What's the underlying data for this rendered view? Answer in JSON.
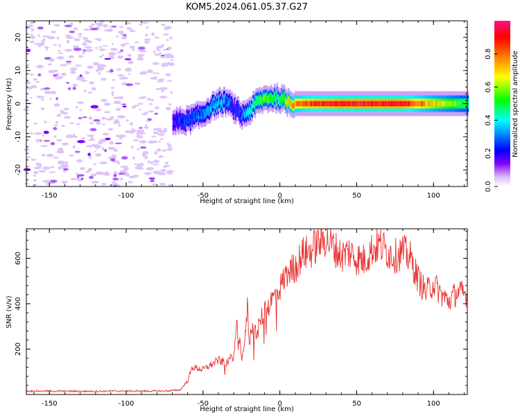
{
  "title": "KOM5.2024.061.05.37.G27",
  "chart_data": [
    {
      "type": "heatmap",
      "xlabel": "Height of straight line (km)",
      "ylabel": "Frequency (Hz)",
      "xlim": [
        -165,
        122
      ],
      "ylim": [
        -25,
        25
      ],
      "xticks": [
        -150,
        -100,
        -50,
        0,
        50,
        100
      ],
      "yticks": [
        20,
        10,
        0,
        -10,
        -20
      ],
      "colorbar": {
        "label": "Normalized spectral amplitude",
        "range": [
          0,
          1
        ],
        "ticks": [
          0.0,
          0.2,
          0.4,
          0.6,
          0.8
        ],
        "colormap": [
          "#ffffff",
          "#d8b8f8",
          "#8000ff",
          "#0000ff",
          "#00a0ff",
          "#00ffff",
          "#00ff00",
          "#ffff00",
          "#ff8000",
          "#ff0000",
          "#ff1080"
        ]
      },
      "noise_region": {
        "x": [
          -165,
          -70
        ],
        "freq": [
          -25,
          25
        ],
        "amplitude": 0.08
      },
      "signal_trace": {
        "x": [
          -70,
          -60,
          -50,
          -45,
          -40,
          -35,
          -30,
          -25,
          -20,
          -15,
          -10,
          -5,
          0,
          5,
          10,
          20,
          40,
          60,
          80,
          100,
          122
        ],
        "freq": [
          -5.5,
          -5.0,
          -3.0,
          -1.0,
          0.3,
          0.5,
          -1.5,
          -3.5,
          -2.0,
          0.5,
          1.5,
          1.8,
          1.5,
          0.5,
          0.0,
          0.0,
          0.0,
          0.0,
          0.0,
          0.0,
          0.0
        ],
        "amplitude": [
          0.15,
          0.25,
          0.3,
          0.35,
          0.35,
          0.3,
          0.2,
          0.25,
          0.4,
          0.5,
          0.55,
          0.5,
          0.5,
          0.7,
          0.8,
          0.85,
          0.9,
          0.9,
          0.9,
          0.7,
          0.5
        ]
      }
    },
    {
      "type": "line",
      "xlabel": "Height of straight line (km)",
      "ylabel": "SNR (v/v)",
      "xlim": [
        -165,
        122
      ],
      "ylim": [
        0,
        730
      ],
      "xticks": [
        -150,
        -100,
        -50,
        0,
        50,
        100
      ],
      "yticks": [
        200,
        400,
        600
      ],
      "color": "#e83030",
      "series": [
        {
          "x": [
            -165,
            -150,
            -130,
            -110,
            -90,
            -75,
            -65,
            -60,
            -57,
            -50,
            -45,
            -40,
            -35,
            -30,
            -28,
            -25,
            -23,
            -21,
            -20,
            -18,
            -15,
            -12,
            -10,
            -5,
            0,
            5,
            10,
            15,
            20,
            25,
            30,
            35,
            40,
            45,
            50,
            55,
            60,
            65,
            70,
            75,
            80,
            85,
            90,
            95,
            100,
            105,
            110,
            115,
            122
          ],
          "y": [
            15,
            15,
            14,
            15,
            15,
            15,
            20,
            60,
            120,
            110,
            130,
            150,
            140,
            170,
            300,
            190,
            210,
            400,
            230,
            300,
            270,
            340,
            360,
            420,
            470,
            540,
            560,
            620,
            630,
            670,
            690,
            650,
            610,
            630,
            600,
            590,
            640,
            660,
            630,
            610,
            630,
            600,
            510,
            450,
            490,
            440,
            410,
            450,
            440
          ]
        }
      ]
    }
  ]
}
